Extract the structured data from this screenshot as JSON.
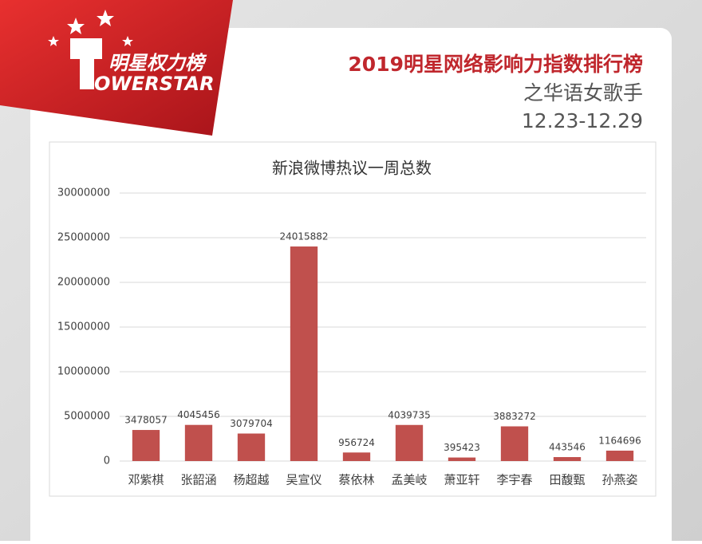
{
  "header": {
    "logo_cn": "明星权力榜",
    "logo_en": "OWERSTAR",
    "title": "2019明星网络影响力指数排行榜",
    "subtitle": "之华语女歌手",
    "date": "12.23-12.29"
  },
  "chart_data": {
    "type": "bar",
    "title": "新浪微博热议一周总数",
    "categories": [
      "邓紫棋",
      "张韶涵",
      "杨超越",
      "吴宣仪",
      "蔡依林",
      "孟美岐",
      "萧亚轩",
      "李宇春",
      "田馥甄",
      "孙燕姿"
    ],
    "values": [
      3478057,
      4045456,
      3079704,
      24015882,
      956724,
      4039735,
      395423,
      3883272,
      443546,
      1164696
    ],
    "color": "#c0504d",
    "ylim": [
      0,
      30000000
    ],
    "yticks": [
      0,
      5000000,
      10000000,
      15000000,
      20000000,
      25000000,
      30000000
    ],
    "grid": true
  }
}
